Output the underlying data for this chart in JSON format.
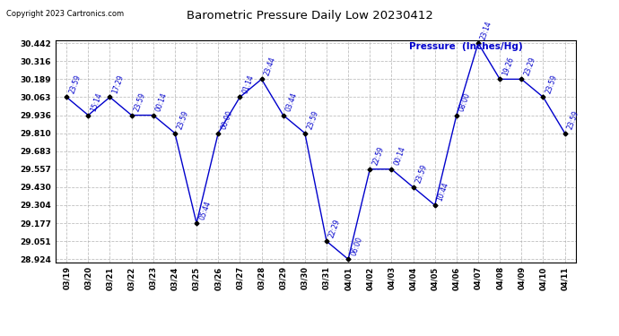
{
  "title": "Barometric Pressure Daily Low 20230412",
  "copyright": "Copyright 2023 Cartronics.com",
  "ylabel": "Pressure  (Inches/Hg)",
  "dates": [
    "03/19",
    "03/20",
    "03/21",
    "03/22",
    "03/23",
    "03/24",
    "03/25",
    "03/26",
    "03/27",
    "03/28",
    "03/29",
    "03/30",
    "03/31",
    "04/01",
    "04/02",
    "04/03",
    "04/04",
    "04/05",
    "04/06",
    "04/07",
    "04/08",
    "04/09",
    "04/10",
    "04/11"
  ],
  "values": [
    30.063,
    29.936,
    30.063,
    29.936,
    29.936,
    29.81,
    29.177,
    29.81,
    30.063,
    30.189,
    29.936,
    29.81,
    29.051,
    28.924,
    29.557,
    29.557,
    29.43,
    29.304,
    29.936,
    30.442,
    30.189,
    30.189,
    30.063,
    29.81
  ],
  "times": [
    "23:59",
    "15:14",
    "17:29",
    "23:59",
    "00:14",
    "23:59",
    "05:44",
    "00:00",
    "01:14",
    "23:44",
    "03:44",
    "23:59",
    "22:29",
    "06:00",
    "22:59",
    "00:14",
    "23:59",
    "10:44",
    "08:00",
    "23:14",
    "19:26",
    "23:29",
    "23:59",
    "23:59"
  ],
  "yticks": [
    28.924,
    29.051,
    29.177,
    29.304,
    29.43,
    29.557,
    29.683,
    29.81,
    29.936,
    30.063,
    30.189,
    30.316,
    30.442
  ],
  "ylim_min": 28.924,
  "ylim_max": 30.442,
  "line_color": "#0000CC",
  "marker_color": "#000000",
  "bg_color": "#ffffff",
  "grid_color": "#b0b0b0",
  "label_color": "#0000CC",
  "title_color": "#000000",
  "copyright_color": "#000000",
  "ylabel_color": "#0000CC"
}
